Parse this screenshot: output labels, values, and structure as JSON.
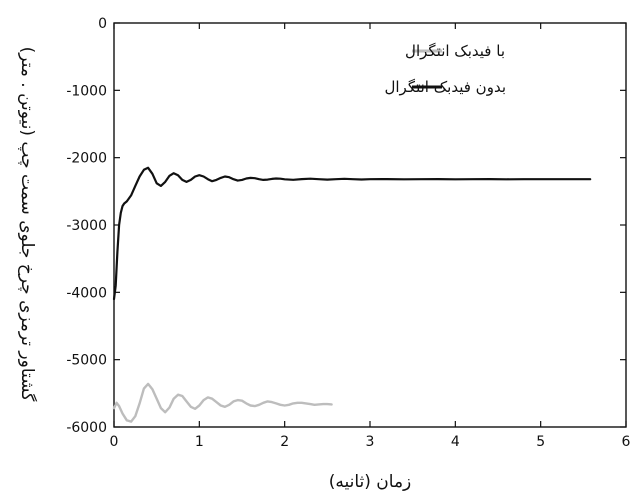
{
  "chart_data": {
    "type": "line",
    "title": "",
    "xlabel": "زمان (ثانیه)",
    "ylabel": "گشتاور ترمزی چرخ جلوی سمت چپ (نیوتن . متر)",
    "xlim": [
      0,
      6
    ],
    "ylim": [
      -6000,
      0
    ],
    "xticks": [
      0,
      1,
      2,
      3,
      4,
      5,
      6
    ],
    "yticks": [
      0,
      -1000,
      -2000,
      -3000,
      -4000,
      -5000,
      -6000
    ],
    "grid": false,
    "legend_position": "top-right",
    "series": [
      {
        "name": "با فیدبک انتگرال",
        "color": "#bdbdbd",
        "x": [
          0,
          0.03,
          0.06,
          0.1,
          0.15,
          0.2,
          0.25,
          0.3,
          0.35,
          0.4,
          0.45,
          0.5,
          0.55,
          0.6,
          0.65,
          0.7,
          0.75,
          0.8,
          0.85,
          0.9,
          0.95,
          1.0,
          1.05,
          1.1,
          1.15,
          1.2,
          1.25,
          1.3,
          1.35,
          1.4,
          1.45,
          1.5,
          1.55,
          1.6,
          1.65,
          1.7,
          1.75,
          1.8,
          1.85,
          1.9,
          1.95,
          2.0,
          2.05,
          2.1,
          2.15,
          2.2,
          2.25,
          2.3,
          2.35,
          2.4,
          2.45,
          2.5,
          2.55
        ],
        "y": [
          -5720,
          -5640,
          -5690,
          -5800,
          -5900,
          -5920,
          -5840,
          -5650,
          -5430,
          -5360,
          -5440,
          -5580,
          -5720,
          -5780,
          -5710,
          -5580,
          -5520,
          -5540,
          -5620,
          -5700,
          -5730,
          -5680,
          -5600,
          -5560,
          -5580,
          -5630,
          -5680,
          -5700,
          -5670,
          -5620,
          -5600,
          -5610,
          -5650,
          -5680,
          -5690,
          -5670,
          -5640,
          -5620,
          -5630,
          -5650,
          -5670,
          -5680,
          -5670,
          -5650,
          -5640,
          -5640,
          -5650,
          -5660,
          -5670,
          -5665,
          -5660,
          -5660,
          -5665
        ]
      },
      {
        "name": "بدون فیدبک انتگرال",
        "color": "#111111",
        "x": [
          0,
          0.02,
          0.04,
          0.06,
          0.08,
          0.1,
          0.12,
          0.15,
          0.2,
          0.25,
          0.3,
          0.35,
          0.4,
          0.45,
          0.5,
          0.55,
          0.6,
          0.65,
          0.7,
          0.75,
          0.8,
          0.85,
          0.9,
          0.95,
          1.0,
          1.05,
          1.1,
          1.15,
          1.2,
          1.25,
          1.3,
          1.35,
          1.4,
          1.45,
          1.5,
          1.55,
          1.6,
          1.65,
          1.7,
          1.75,
          1.8,
          1.85,
          1.9,
          1.95,
          2.0,
          2.1,
          2.2,
          2.3,
          2.4,
          2.5,
          2.6,
          2.7,
          2.8,
          2.9,
          3.0,
          3.2,
          3.4,
          3.6,
          3.8,
          4.0,
          4.2,
          4.4,
          4.6,
          4.8,
          5.0,
          5.2,
          5.4,
          5.58
        ],
        "y": [
          -4100,
          -3900,
          -3400,
          -3000,
          -2820,
          -2720,
          -2680,
          -2650,
          -2560,
          -2420,
          -2280,
          -2180,
          -2150,
          -2240,
          -2380,
          -2420,
          -2360,
          -2270,
          -2230,
          -2260,
          -2330,
          -2360,
          -2330,
          -2280,
          -2260,
          -2280,
          -2320,
          -2350,
          -2330,
          -2300,
          -2280,
          -2290,
          -2320,
          -2340,
          -2330,
          -2310,
          -2300,
          -2305,
          -2320,
          -2330,
          -2325,
          -2315,
          -2310,
          -2312,
          -2322,
          -2328,
          -2318,
          -2312,
          -2320,
          -2326,
          -2320,
          -2314,
          -2320,
          -2324,
          -2320,
          -2318,
          -2322,
          -2320,
          -2318,
          -2322,
          -2320,
          -2319,
          -2321,
          -2320,
          -2320,
          -2320,
          -2320,
          -2320
        ]
      }
    ]
  }
}
